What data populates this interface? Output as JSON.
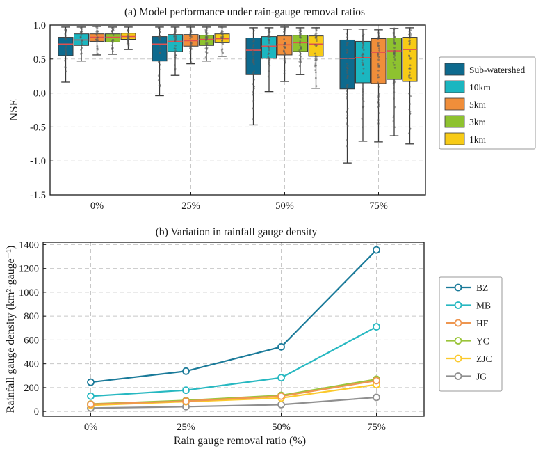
{
  "colors": {
    "sub_watershed": "#0d6a8e",
    "km10": "#1bb6c0",
    "km5": "#f08e3a",
    "km3": "#8ec22f",
    "km1": "#f7cb16",
    "BZ": "#1a7a99",
    "MB": "#27b8c1",
    "HF": "#ee9650",
    "YC": "#9ac43a",
    "ZJC": "#fbc92b",
    "JG": "#8f8f8f",
    "median": "#e05050"
  },
  "chart_data": [
    {
      "type": "box",
      "title": "(a) Model performance under rain-gauge removal ratios",
      "xlabel": "",
      "ylabel": "NSE",
      "ylim": [
        -1.5,
        1.0
      ],
      "yticks": [
        1.0,
        0.5,
        0.0,
        -0.5,
        -1.0,
        -1.5
      ],
      "ytick_labels": [
        "1.0",
        "0.5",
        "0.0",
        "-0.5",
        "-1.0",
        "-1.5"
      ],
      "categories": [
        "0%",
        "25%",
        "50%",
        "75%"
      ],
      "grid": true,
      "legend": "outside-right",
      "series": [
        {
          "name": "Sub-watershed",
          "color_key": "sub_watershed",
          "boxes": [
            {
              "whislo": 0.16,
              "q1": 0.55,
              "med": 0.72,
              "q3": 0.82,
              "whishi": 0.97
            },
            {
              "whislo": -0.04,
              "q1": 0.47,
              "med": 0.72,
              "q3": 0.83,
              "whishi": 0.97
            },
            {
              "whislo": -0.47,
              "q1": 0.27,
              "med": 0.63,
              "q3": 0.81,
              "whishi": 0.96
            },
            {
              "whislo": -1.03,
              "q1": 0.06,
              "med": 0.51,
              "q3": 0.78,
              "whishi": 0.94
            }
          ]
        },
        {
          "name": "10km",
          "color_key": "km10",
          "boxes": [
            {
              "whislo": 0.47,
              "q1": 0.7,
              "med": 0.78,
              "q3": 0.87,
              "whishi": 0.97
            },
            {
              "whislo": 0.26,
              "q1": 0.61,
              "med": 0.76,
              "q3": 0.86,
              "whishi": 0.97
            },
            {
              "whislo": 0.02,
              "q1": 0.51,
              "med": 0.69,
              "q3": 0.83,
              "whishi": 0.96
            },
            {
              "whislo": -0.71,
              "q1": 0.15,
              "med": 0.52,
              "q3": 0.76,
              "whishi": 0.94
            }
          ]
        },
        {
          "name": "5km",
          "color_key": "km5",
          "boxes": [
            {
              "whislo": 0.56,
              "q1": 0.76,
              "med": 0.82,
              "q3": 0.87,
              "whishi": 0.98
            },
            {
              "whislo": 0.43,
              "q1": 0.69,
              "med": 0.77,
              "q3": 0.86,
              "whishi": 0.97
            },
            {
              "whislo": 0.17,
              "q1": 0.56,
              "med": 0.71,
              "q3": 0.84,
              "whishi": 0.97
            },
            {
              "whislo": -0.72,
              "q1": 0.14,
              "med": 0.6,
              "q3": 0.8,
              "whishi": 0.93
            }
          ]
        },
        {
          "name": "3km",
          "color_key": "km3",
          "boxes": [
            {
              "whislo": 0.57,
              "q1": 0.75,
              "med": 0.82,
              "q3": 0.87,
              "whishi": 0.97
            },
            {
              "whislo": 0.47,
              "q1": 0.7,
              "med": 0.79,
              "q3": 0.85,
              "whishi": 0.97
            },
            {
              "whislo": 0.27,
              "q1": 0.61,
              "med": 0.74,
              "q3": 0.85,
              "whishi": 0.96
            },
            {
              "whislo": -0.63,
              "q1": 0.2,
              "med": 0.62,
              "q3": 0.81,
              "whishi": 0.95
            }
          ]
        },
        {
          "name": "1km",
          "color_key": "km1",
          "boxes": [
            {
              "whislo": 0.64,
              "q1": 0.79,
              "med": 0.83,
              "q3": 0.88,
              "whishi": 0.97
            },
            {
              "whislo": 0.54,
              "q1": 0.74,
              "med": 0.8,
              "q3": 0.87,
              "whishi": 0.97
            },
            {
              "whislo": 0.07,
              "q1": 0.54,
              "med": 0.72,
              "q3": 0.84,
              "whishi": 0.96
            },
            {
              "whislo": -0.75,
              "q1": 0.17,
              "med": 0.64,
              "q3": 0.82,
              "whishi": 0.96
            }
          ]
        }
      ]
    },
    {
      "type": "line",
      "title": "(b) Variation in rainfall gauge density",
      "xlabel": "Rain gauge removal ratio (%)",
      "ylabel": "Rainfall gauge density (km²·gauge⁻¹)",
      "ylim": [
        -40,
        1420
      ],
      "yticks": [
        0,
        200,
        400,
        600,
        800,
        1000,
        1200,
        1400
      ],
      "ytick_labels": [
        "0",
        "200",
        "400",
        "600",
        "800",
        "1000",
        "1200",
        "1400"
      ],
      "categories": [
        "0%",
        "25%",
        "50%",
        "75%"
      ],
      "grid": true,
      "legend": "outside-right",
      "series": [
        {
          "name": "BZ",
          "color_key": "BZ",
          "values": [
            245,
            338,
            542,
            1355
          ]
        },
        {
          "name": "MB",
          "color_key": "MB",
          "values": [
            128,
            178,
            283,
            710
          ]
        },
        {
          "name": "HF",
          "color_key": "HF",
          "values": [
            60,
            86,
            128,
            258
          ]
        },
        {
          "name": "YC",
          "color_key": "YC",
          "values": [
            62,
            92,
            135,
            270
          ]
        },
        {
          "name": "ZJC",
          "color_key": "ZJC",
          "values": [
            52,
            82,
            113,
            225
          ]
        },
        {
          "name": "JG",
          "color_key": "JG",
          "values": [
            28,
            40,
            57,
            118
          ]
        }
      ]
    }
  ]
}
